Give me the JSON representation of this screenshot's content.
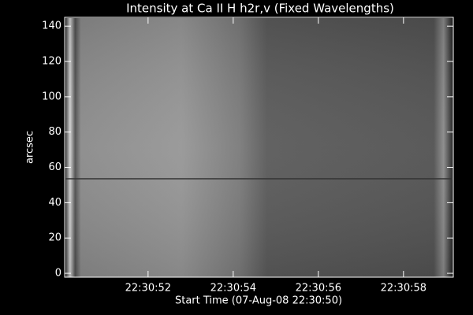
{
  "chart_data": {
    "type": "image",
    "title": "Intensity at Ca II H h2r,v (Fixed Wavelengths)",
    "xlabel": "Start Time (07-Aug-08 22:30:50)",
    "ylabel": "arcsec",
    "xlim": [
      0.04,
      9.17
    ],
    "xticks": [
      {
        "value": 2,
        "label": "22:30:52"
      },
      {
        "value": 4,
        "label": "22:30:54"
      },
      {
        "value": 6,
        "label": "22:30:56"
      },
      {
        "value": 8,
        "label": "22:30:58"
      }
    ],
    "ylim": [
      -2.2,
      145
    ],
    "yticks": [
      0,
      20,
      40,
      60,
      80,
      100,
      120,
      140
    ]
  }
}
